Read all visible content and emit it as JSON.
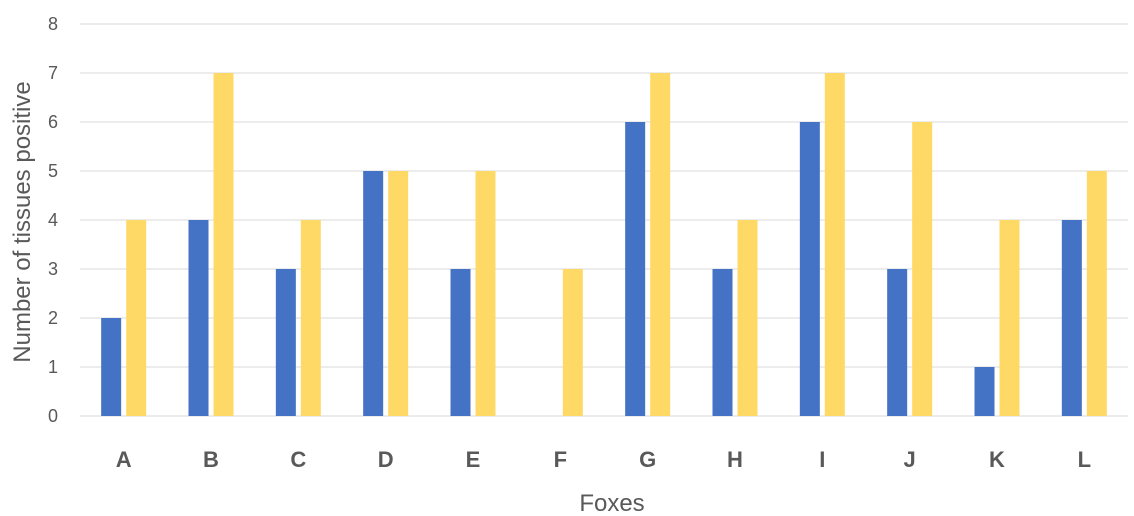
{
  "chart_data": {
    "type": "bar",
    "title": "",
    "xlabel": "Foxes",
    "ylabel": "Number of tissues positive",
    "categories": [
      "A",
      "B",
      "C",
      "D",
      "E",
      "F",
      "G",
      "H",
      "I",
      "J",
      "K",
      "L"
    ],
    "series": [
      {
        "values": [
          2,
          4,
          3,
          5,
          3,
          0,
          6,
          3,
          6,
          3,
          1,
          4
        ],
        "color": "#4472C4"
      },
      {
        "values": [
          4,
          7,
          4,
          5,
          5,
          3,
          7,
          4,
          7,
          6,
          4,
          5
        ],
        "color": "#FFD966"
      }
    ],
    "ylim": [
      0,
      8
    ],
    "yticks": [
      0,
      1,
      2,
      3,
      4,
      5,
      6,
      7,
      8
    ],
    "grid": true,
    "legend": "none"
  }
}
